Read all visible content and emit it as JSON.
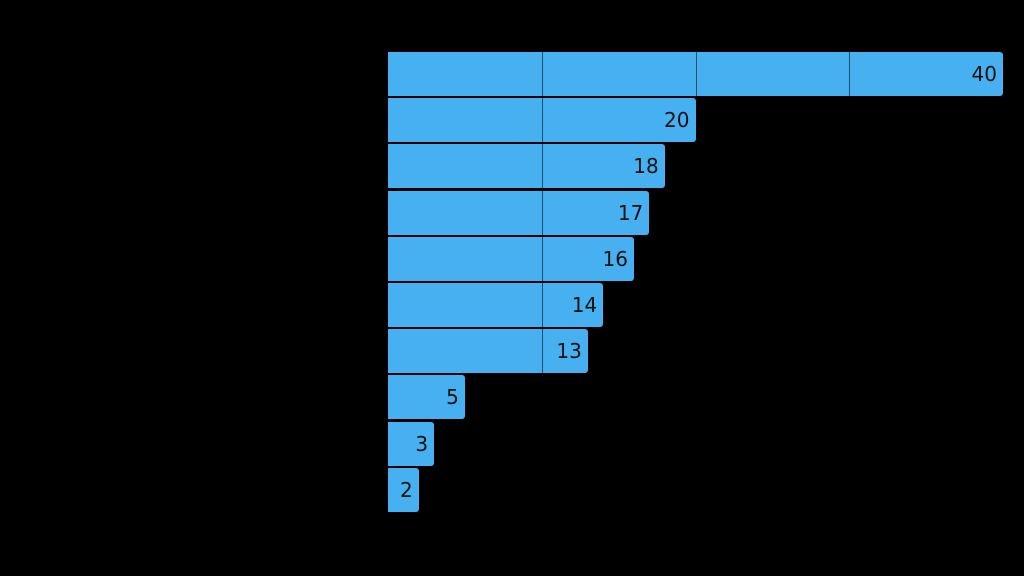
{
  "chart_data": {
    "type": "bar",
    "orientation": "horizontal",
    "title": "",
    "xlabel": "",
    "ylabel": "",
    "categories": [
      "",
      "",
      "",
      "",
      "",
      "",
      "",
      "",
      "",
      ""
    ],
    "values": [
      40,
      20,
      18,
      17,
      16,
      14,
      13,
      5,
      3,
      2
    ],
    "xlim": [
      0,
      40
    ],
    "grid": true,
    "gridlines_at": [
      10,
      20,
      30
    ],
    "data_labels": true,
    "legend": "none",
    "colors": {
      "bar": "#47B0F0",
      "background": "#000000",
      "label_text": "#111111"
    }
  },
  "bars": [
    {
      "value": "40"
    },
    {
      "value": "20"
    },
    {
      "value": "18"
    },
    {
      "value": "17"
    },
    {
      "value": "16"
    },
    {
      "value": "14"
    },
    {
      "value": "13"
    },
    {
      "value": "5"
    },
    {
      "value": "3"
    },
    {
      "value": "2"
    }
  ]
}
